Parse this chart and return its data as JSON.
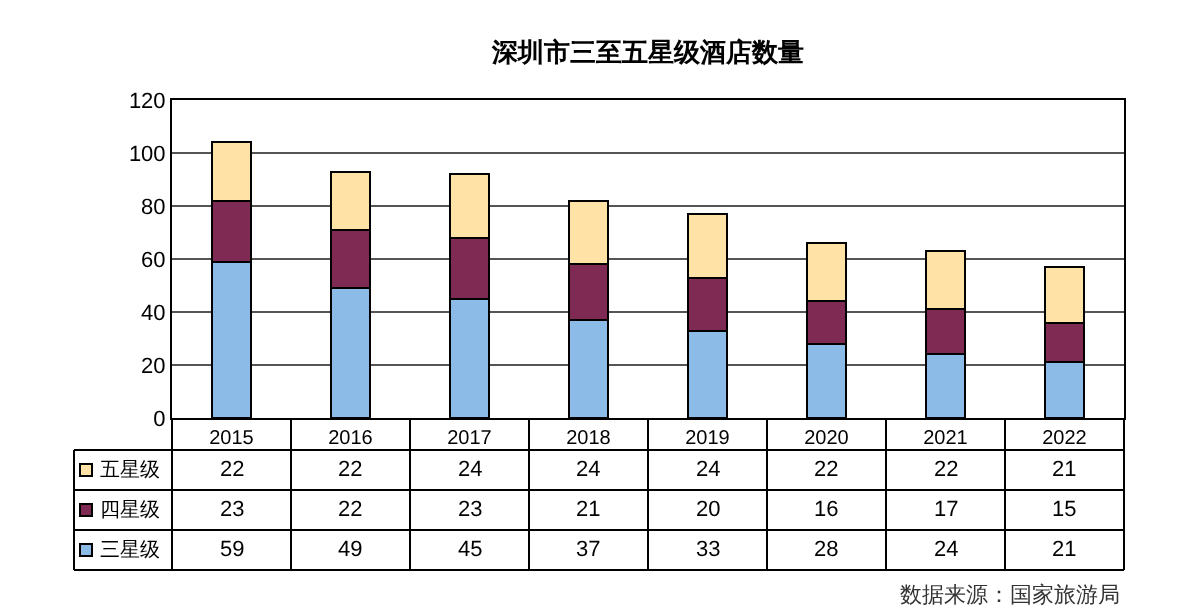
{
  "chart_data": {
    "type": "bar",
    "title": "深圳市三至五星级酒店数量",
    "categories": [
      "2015",
      "2016",
      "2017",
      "2018",
      "2019",
      "2020",
      "2021",
      "2022"
    ],
    "stacked": true,
    "series": [
      {
        "name": "三星级",
        "color": "#8dbbe8",
        "values": [
          59,
          49,
          45,
          37,
          33,
          28,
          24,
          21
        ]
      },
      {
        "name": "四星级",
        "color": "#7e2a52",
        "values": [
          23,
          22,
          23,
          21,
          20,
          16,
          17,
          15
        ]
      },
      {
        "name": "五星级",
        "color": "#ffe3a6",
        "values": [
          22,
          22,
          24,
          24,
          24,
          22,
          22,
          21
        ]
      }
    ],
    "ylim": [
      0,
      120
    ],
    "yticks": [
      0,
      20,
      40,
      60,
      80,
      100,
      120
    ],
    "grid": "y",
    "legend": "bottom",
    "data_labels": true,
    "annotations": [
      "数据来源：国家旅游局"
    ]
  }
}
